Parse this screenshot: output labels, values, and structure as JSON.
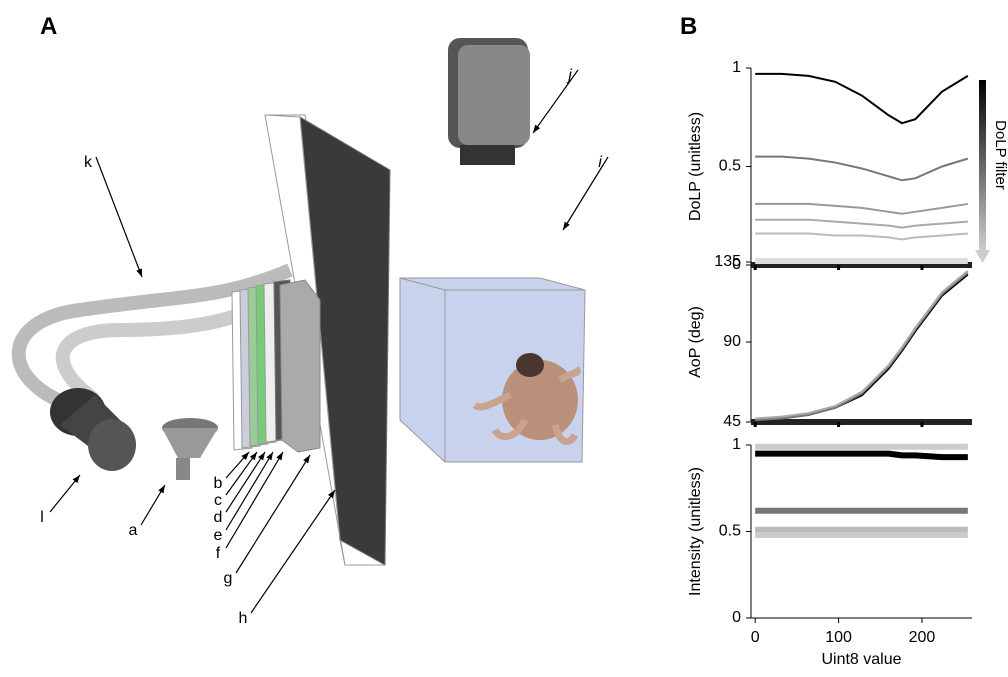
{
  "panel_a": {
    "label": "A",
    "labels": [
      "a",
      "b",
      "c",
      "d",
      "e",
      "f",
      "g",
      "h",
      "i",
      "j",
      "k",
      "l"
    ]
  },
  "panel_b": {
    "label": "B",
    "filter_label": "DoLP filter"
  },
  "chart_data": [
    {
      "type": "line",
      "ylabel": "DoLP (unitless)",
      "x": [
        0,
        32,
        64,
        96,
        128,
        160,
        176,
        192,
        224,
        255
      ],
      "xlim": [
        -5,
        260
      ],
      "xticks": [
        0,
        100,
        200
      ],
      "ylim": [
        0,
        1
      ],
      "yticks": [
        0,
        0.5,
        1
      ],
      "series": [
        {
          "color": "#000000",
          "values": [
            0.97,
            0.97,
            0.96,
            0.93,
            0.86,
            0.76,
            0.72,
            0.74,
            0.88,
            0.96
          ]
        },
        {
          "color": "#777777",
          "values": [
            0.55,
            0.55,
            0.54,
            0.52,
            0.49,
            0.45,
            0.43,
            0.44,
            0.5,
            0.54
          ]
        },
        {
          "color": "#999999",
          "values": [
            0.31,
            0.31,
            0.31,
            0.3,
            0.29,
            0.27,
            0.26,
            0.27,
            0.29,
            0.31
          ]
        },
        {
          "color": "#aaaaaa",
          "values": [
            0.23,
            0.23,
            0.23,
            0.22,
            0.21,
            0.2,
            0.19,
            0.2,
            0.21,
            0.22
          ]
        },
        {
          "color": "#bbbbbb",
          "values": [
            0.16,
            0.16,
            0.16,
            0.15,
            0.15,
            0.14,
            0.13,
            0.14,
            0.15,
            0.16
          ]
        },
        {
          "color": "#dddddd",
          "values": [
            0.02,
            0.02,
            0.02,
            0.02,
            0.02,
            0.02,
            0.02,
            0.02,
            0.02,
            0.02
          ]
        }
      ]
    },
    {
      "type": "line",
      "ylabel": "AoP (deg)",
      "x": [
        0,
        32,
        64,
        96,
        128,
        160,
        176,
        192,
        224,
        255
      ],
      "xlim": [
        -5,
        260
      ],
      "xticks": [
        0,
        100,
        200
      ],
      "ylim": [
        45,
        135
      ],
      "yticks": [
        45,
        90,
        135
      ],
      "series": [
        {
          "color": "#000000",
          "values": [
            46,
            47,
            49,
            53,
            60,
            75,
            85,
            96,
            116,
            128
          ]
        },
        {
          "color": "#777777",
          "values": [
            46,
            47,
            49,
            53,
            61,
            76,
            86,
            97,
            117,
            129
          ]
        },
        {
          "color": "#aaaaaa",
          "values": [
            47,
            48,
            50,
            54,
            62,
            77,
            87,
            98,
            118,
            130
          ]
        }
      ]
    },
    {
      "type": "line",
      "ylabel": "Intensity (unitless)",
      "xlabel": "Uint8 value",
      "x": [
        0,
        32,
        64,
        96,
        128,
        160,
        176,
        192,
        224,
        255
      ],
      "xlim": [
        -5,
        260
      ],
      "xticks": [
        0,
        100,
        200
      ],
      "ylim": [
        0,
        1
      ],
      "yticks": [
        0,
        0.5,
        1
      ],
      "series": [
        {
          "color": "#cccccc",
          "values": [
            0.99,
            0.99,
            0.99,
            0.99,
            0.99,
            0.99,
            0.99,
            0.99,
            0.99,
            0.99
          ]
        },
        {
          "color": "#000000",
          "values": [
            0.95,
            0.95,
            0.95,
            0.95,
            0.95,
            0.95,
            0.94,
            0.94,
            0.93,
            0.93
          ]
        },
        {
          "color": "#777777",
          "values": [
            0.62,
            0.62,
            0.62,
            0.62,
            0.62,
            0.62,
            0.62,
            0.62,
            0.62,
            0.62
          ]
        },
        {
          "color": "#bbbbbb",
          "values": [
            0.51,
            0.51,
            0.51,
            0.51,
            0.51,
            0.51,
            0.51,
            0.51,
            0.51,
            0.51
          ]
        },
        {
          "color": "#cccccc",
          "values": [
            0.48,
            0.48,
            0.48,
            0.48,
            0.48,
            0.48,
            0.48,
            0.48,
            0.48,
            0.48
          ]
        }
      ]
    }
  ]
}
